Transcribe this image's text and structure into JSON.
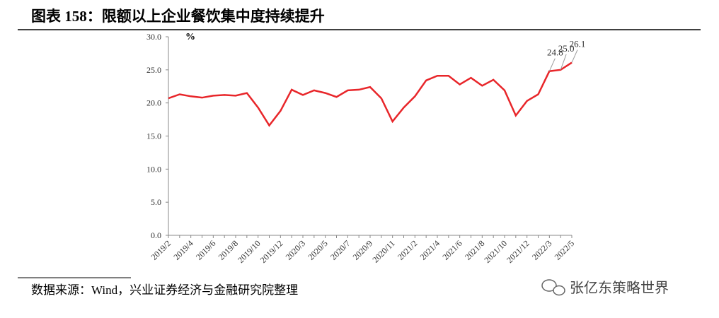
{
  "chart_data": {
    "type": "line",
    "title": "图表 158：限额以上企业餐饮集中度持续提升",
    "y_unit": "%",
    "source": "数据来源：Wind，兴业证券经济与金融研究院整理",
    "watermark": "张亿东策略世界",
    "categories": [
      "2019/2",
      null,
      "2019/4",
      null,
      "2019/6",
      null,
      "2019/8",
      null,
      "2019/10",
      null,
      "2019/12",
      null,
      "2020/3",
      null,
      "2020/5",
      null,
      "2020/7",
      null,
      "2020/9",
      null,
      "2020/11",
      null,
      "2021/2",
      null,
      "2021/4",
      null,
      "2021/6",
      null,
      "2021/8",
      null,
      "2021/10",
      null,
      "2021/12",
      null,
      "2022/3",
      null,
      "2022/5"
    ],
    "series": [
      {
        "name": "限额以上企业餐饮集中度",
        "color": "#e8262a",
        "values": [
          20.7,
          21.3,
          21.0,
          20.8,
          21.1,
          21.2,
          21.1,
          21.5,
          19.3,
          16.6,
          18.8,
          22.0,
          21.2,
          21.9,
          21.5,
          20.9,
          21.9,
          22.0,
          22.4,
          20.7,
          17.2,
          19.3,
          21.0,
          23.4,
          24.1,
          24.1,
          22.8,
          23.8,
          22.6,
          23.5,
          21.9,
          18.1,
          20.3,
          21.3,
          24.8,
          25.0,
          26.1
        ],
        "value_labels": [
          null,
          null,
          null,
          null,
          null,
          null,
          null,
          null,
          null,
          null,
          null,
          null,
          null,
          null,
          null,
          null,
          null,
          null,
          null,
          null,
          null,
          null,
          null,
          null,
          null,
          null,
          null,
          null,
          null,
          null,
          null,
          null,
          null,
          null,
          "24.8",
          "25.0",
          "26.1"
        ]
      }
    ],
    "ylim": [
      0,
      30
    ],
    "yticks": [
      {
        "value": 0,
        "label": "0.0"
      },
      {
        "value": 5,
        "label": "5.0"
      },
      {
        "value": 10,
        "label": "10.0"
      },
      {
        "value": 15,
        "label": "15.0"
      },
      {
        "value": 20,
        "label": "20.0"
      },
      {
        "value": 25,
        "label": "25.0"
      },
      {
        "value": 30,
        "label": "30.0"
      }
    ],
    "grid": false
  }
}
